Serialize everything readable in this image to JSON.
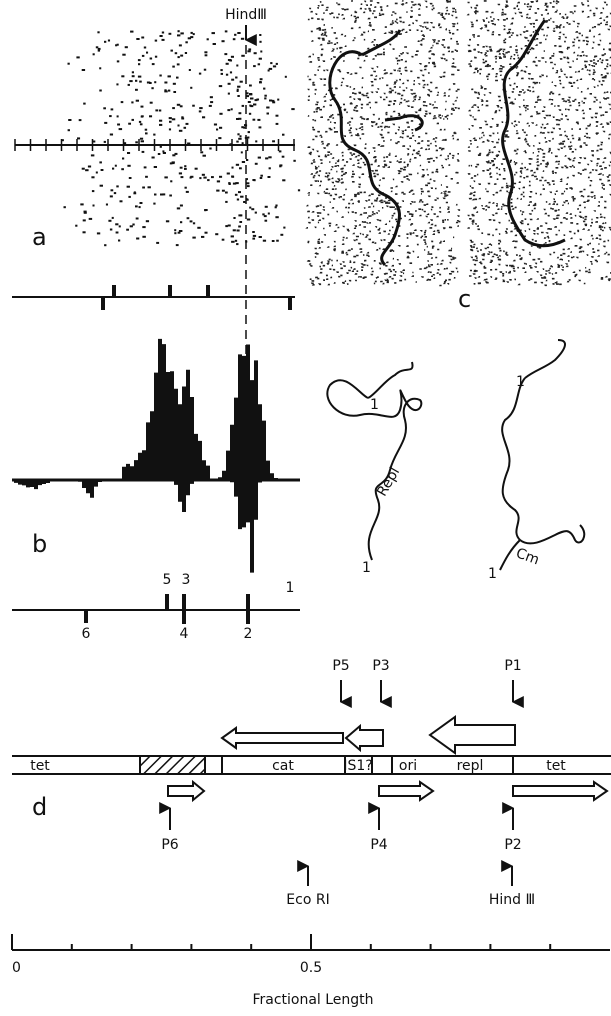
{
  "panel_labels": {
    "a": "a",
    "b": "b",
    "c": "c",
    "d": "d"
  },
  "site_label": "HindⅢ",
  "peaks": {
    "top": [
      "5",
      "3",
      "1"
    ],
    "bottom": [
      "6",
      "4",
      "2"
    ]
  },
  "tracings": [
    {
      "end_top": "1",
      "label": "Repl",
      "end_bottom": "1"
    },
    {
      "end_top": "1",
      "label": "Cm",
      "end_bottom": "1"
    }
  ],
  "map": {
    "segments": [
      "tet",
      "cat",
      "IS1?",
      "ori",
      "repl",
      "tet"
    ],
    "promoters_above": [
      "P5",
      "P3",
      "P1"
    ],
    "promoters_below": [
      "P6",
      "P4",
      "P2"
    ],
    "sites": [
      "Eco RI",
      "Hind Ⅲ"
    ]
  },
  "axis": {
    "xlim": [
      0,
      1
    ],
    "ticks": [
      0,
      0.1,
      0.2,
      0.3,
      0.4,
      0.5,
      0.6,
      0.7,
      0.8,
      0.9
    ],
    "tick_labels": [
      0,
      0.5
    ],
    "title": "Fractional Length"
  }
}
